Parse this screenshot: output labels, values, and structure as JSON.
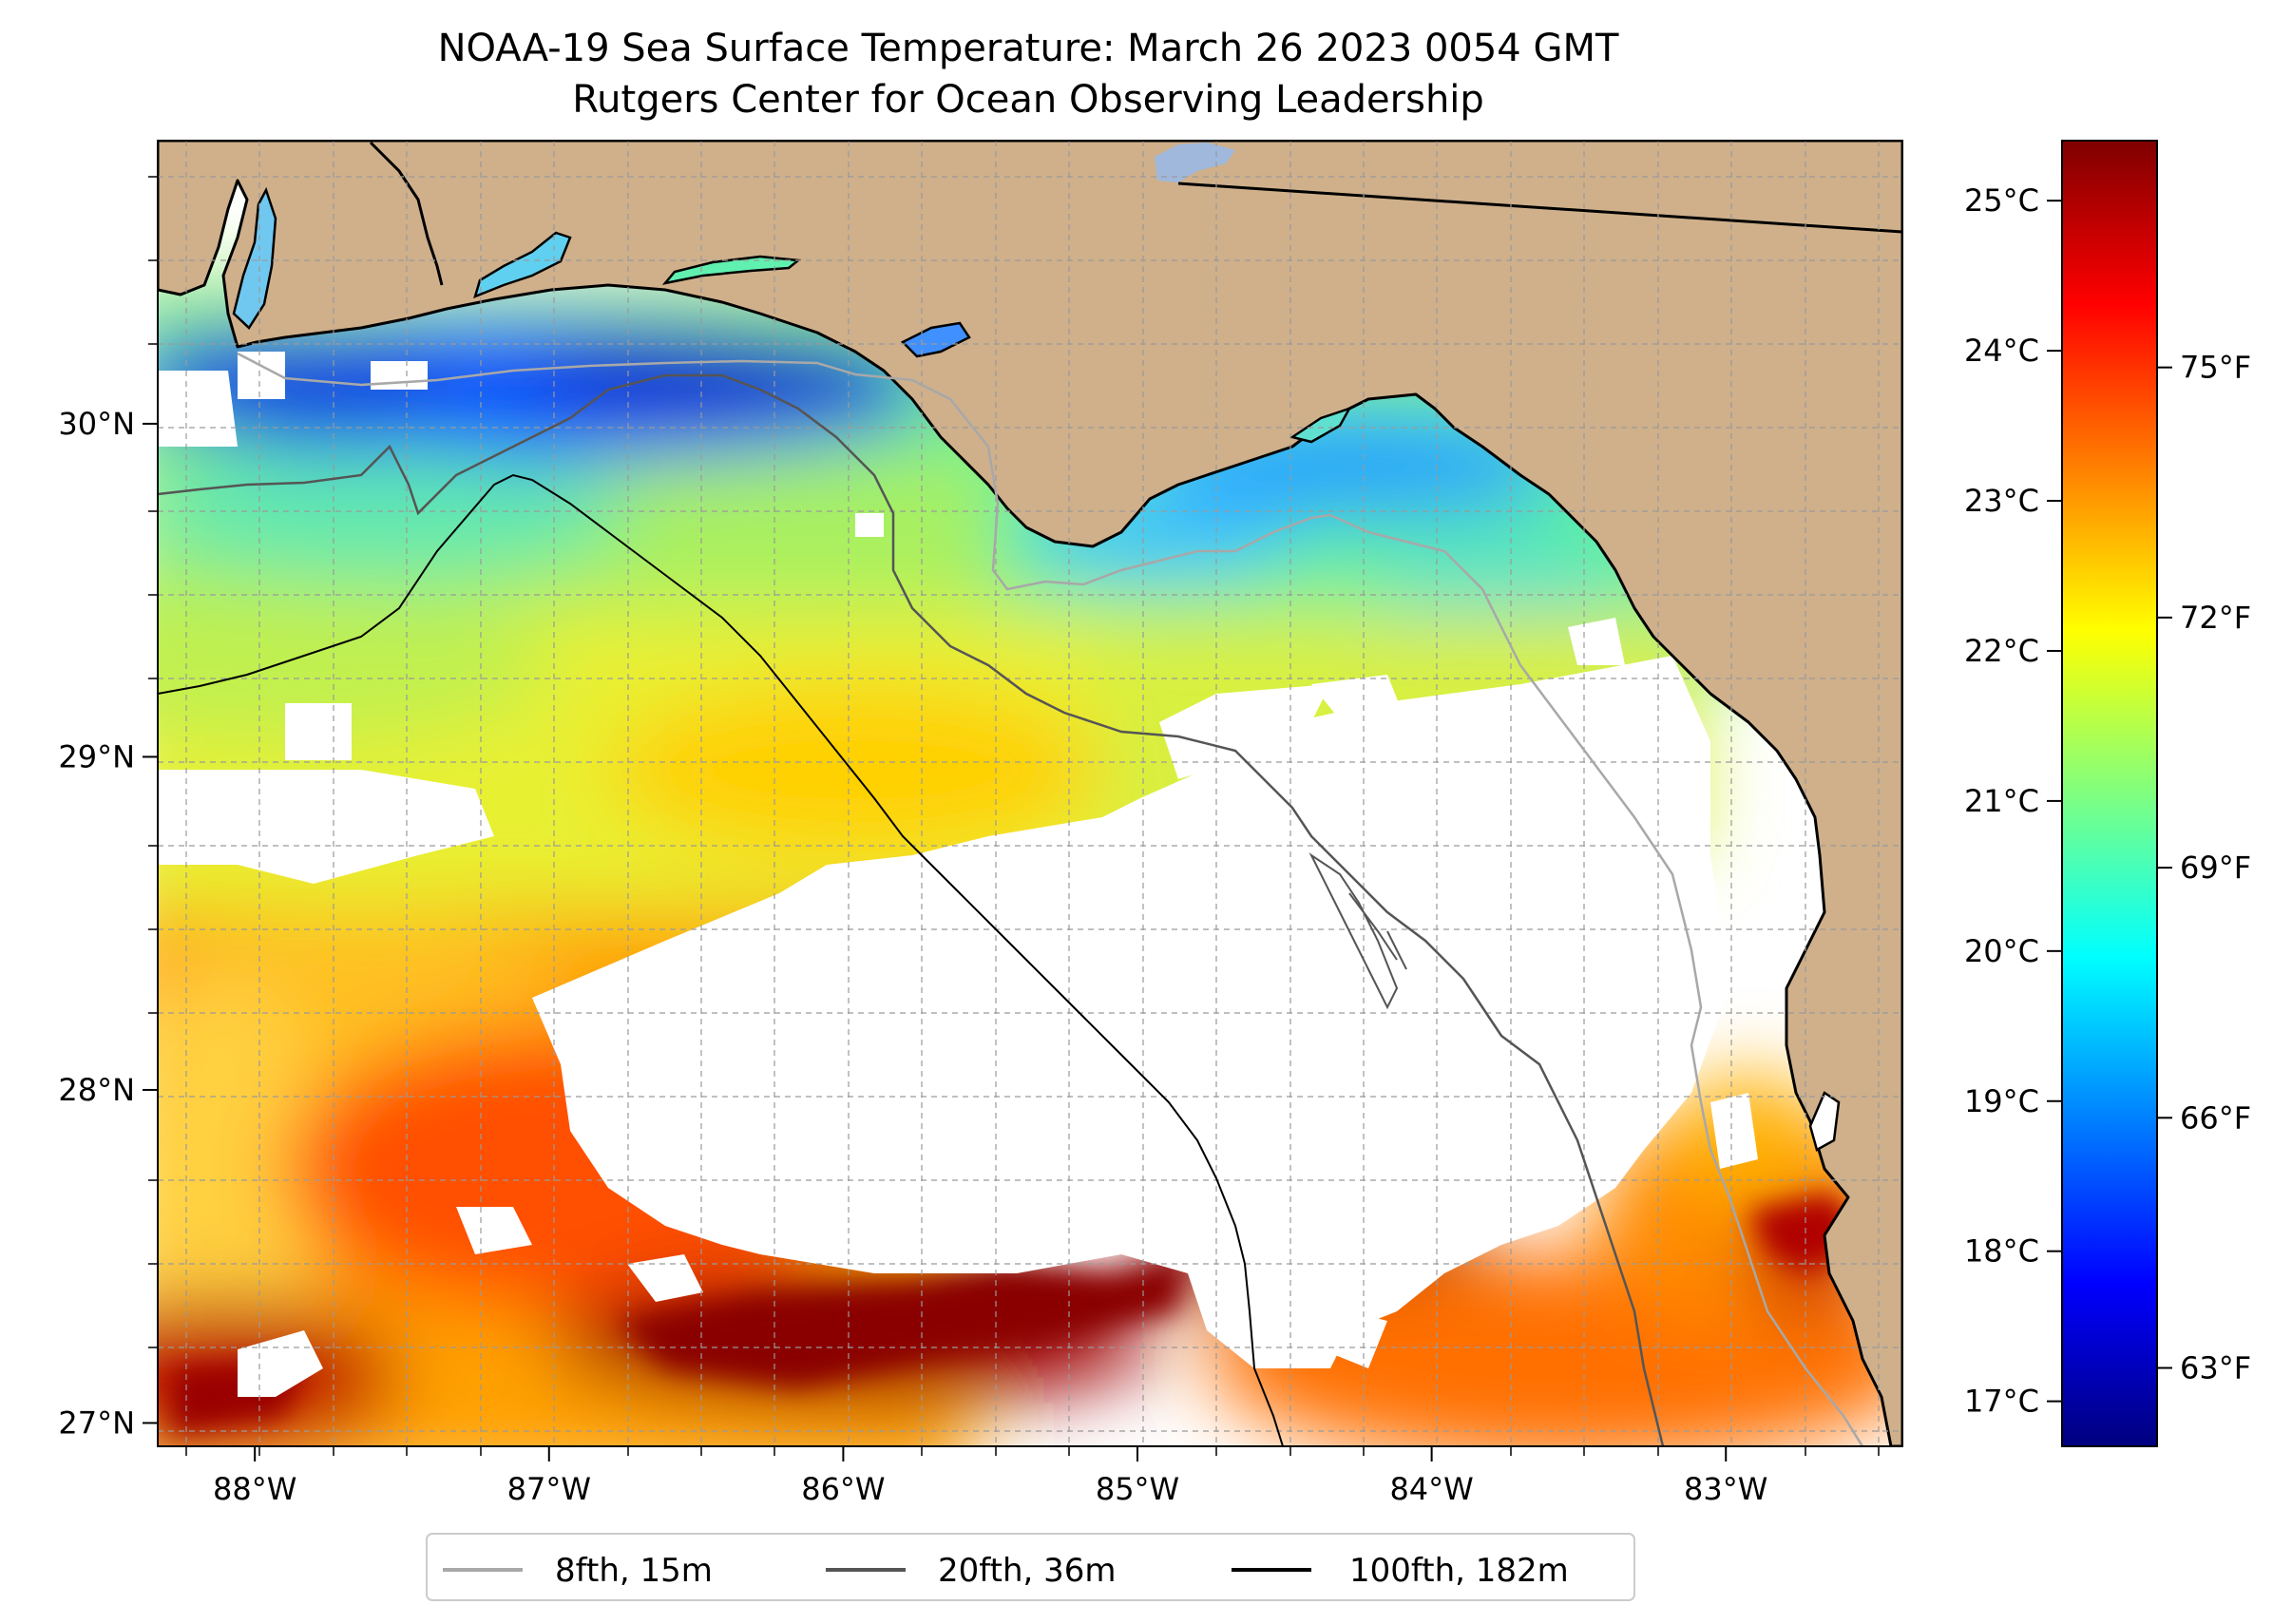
{
  "title": {
    "line1": "NOAA-19 Sea Surface Temperature: March 26 2023 0054 GMT",
    "line2": "Rutgers Center for Ocean Observing Leadership"
  },
  "map": {
    "lon_range": [
      -88.33,
      -82.4
    ],
    "lat_range": [
      26.93,
      30.85
    ],
    "lat_ticks": [
      {
        "value": 30,
        "label": "30°N"
      },
      {
        "value": 29,
        "label": "29°N"
      },
      {
        "value": 28,
        "label": "28°N"
      },
      {
        "value": 27,
        "label": "27°N"
      }
    ],
    "lon_ticks": [
      {
        "value": -88,
        "label": "88°W"
      },
      {
        "value": -87,
        "label": "87°W"
      },
      {
        "value": -86,
        "label": "86°W"
      },
      {
        "value": -85,
        "label": "85°W"
      },
      {
        "value": -84,
        "label": "84°W"
      },
      {
        "value": -83,
        "label": "83°W"
      }
    ],
    "gridlines": true,
    "land_color": "#cfb08b",
    "no_data_color": "#ffffff",
    "lake_color": "#9fb8dc"
  },
  "colorbar": {
    "colormap": "jet",
    "celsius_range": [
      16.7,
      25.4
    ],
    "celsius_ticks": [
      {
        "value": 25,
        "label": "25°C"
      },
      {
        "value": 24,
        "label": "24°C"
      },
      {
        "value": 23,
        "label": "23°C"
      },
      {
        "value": 22,
        "label": "22°C"
      },
      {
        "value": 21,
        "label": "21°C"
      },
      {
        "value": 20,
        "label": "20°C"
      },
      {
        "value": 19,
        "label": "19°C"
      },
      {
        "value": 18,
        "label": "18°C"
      },
      {
        "value": 17,
        "label": "17°C"
      }
    ],
    "fahrenheit_ticks": [
      {
        "value": 75,
        "label": "75°F"
      },
      {
        "value": 72,
        "label": "72°F"
      },
      {
        "value": 69,
        "label": "69°F"
      },
      {
        "value": 66,
        "label": "66°F"
      },
      {
        "value": 63,
        "label": "63°F"
      }
    ]
  },
  "legend": {
    "location": "bottom-center",
    "entries": [
      {
        "label": "8fth, 15m",
        "color": "#a8a8a8"
      },
      {
        "label": "20fth, 36m",
        "color": "#555555"
      },
      {
        "label": "100fth, 182m",
        "color": "#000000"
      }
    ]
  }
}
